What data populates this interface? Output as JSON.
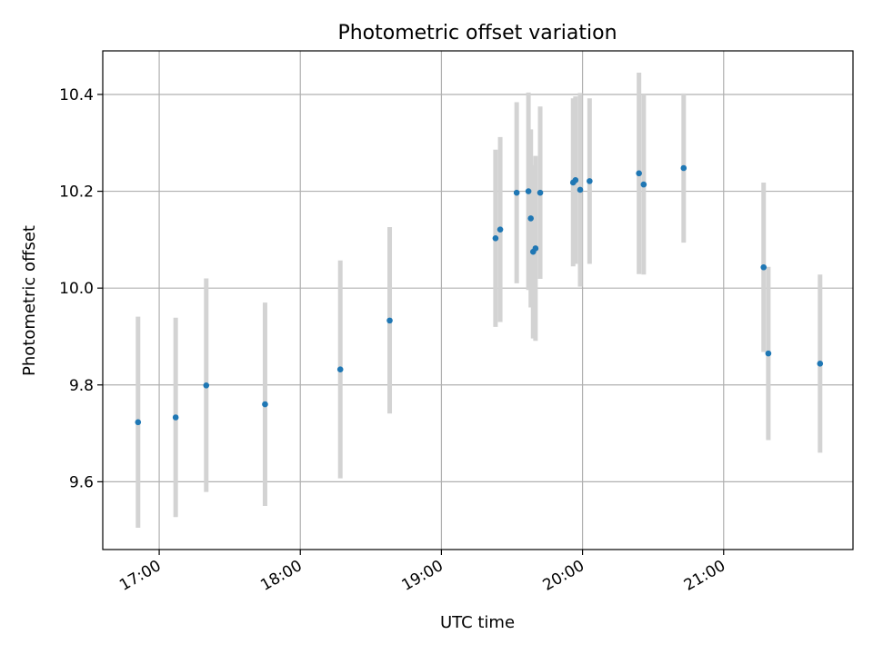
{
  "chart_data": {
    "type": "scatter",
    "title": "Photometric offset variation",
    "xlabel": "UTC time",
    "ylabel": "Photometric offset",
    "xlim": [
      "16:36",
      "21:55"
    ],
    "ylim": [
      9.46,
      10.49
    ],
    "grid": true,
    "x_ticks": [
      "17:00",
      "18:00",
      "19:00",
      "20:00",
      "21:00"
    ],
    "y_ticks": [
      "9.6",
      "9.8",
      "10.0",
      "10.2",
      "10.4"
    ],
    "colors": {
      "point": "#1f77b4",
      "errorbar": "#d3d3d3",
      "grid": "#b0b0b0"
    },
    "points": [
      {
        "x": "16:51",
        "y": 9.723,
        "err_low": 9.505,
        "err_high": 9.941
      },
      {
        "x": "17:07",
        "y": 9.733,
        "err_low": 9.527,
        "err_high": 9.939
      },
      {
        "x": "17:20",
        "y": 9.799,
        "err_low": 9.579,
        "err_high": 10.02
      },
      {
        "x": "17:45",
        "y": 9.76,
        "err_low": 9.55,
        "err_high": 9.97
      },
      {
        "x": "18:17",
        "y": 9.832,
        "err_low": 9.607,
        "err_high": 10.057
      },
      {
        "x": "18:38",
        "y": 9.933,
        "err_low": 9.741,
        "err_high": 10.126
      },
      {
        "x": "19:23",
        "y": 10.103,
        "err_low": 9.92,
        "err_high": 10.286
      },
      {
        "x": "19:25",
        "y": 10.121,
        "err_low": 9.93,
        "err_high": 10.312
      },
      {
        "x": "19:32",
        "y": 10.197,
        "err_low": 10.01,
        "err_high": 10.384
      },
      {
        "x": "19:37",
        "y": 10.2,
        "err_low": 9.996,
        "err_high": 10.404
      },
      {
        "x": "19:38",
        "y": 10.144,
        "err_low": 9.96,
        "err_high": 10.328
      },
      {
        "x": "19:39",
        "y": 10.075,
        "err_low": 9.896,
        "err_high": 10.254
      },
      {
        "x": "19:40",
        "y": 10.082,
        "err_low": 9.891,
        "err_high": 10.273
      },
      {
        "x": "19:42",
        "y": 10.197,
        "err_low": 10.019,
        "err_high": 10.375
      },
      {
        "x": "19:56",
        "y": 10.218,
        "err_low": 10.045,
        "err_high": 10.392
      },
      {
        "x": "19:57",
        "y": 10.223,
        "err_low": 10.05,
        "err_high": 10.396
      },
      {
        "x": "19:59",
        "y": 10.203,
        "err_low": 10.003,
        "err_high": 10.403
      },
      {
        "x": "20:03",
        "y": 10.221,
        "err_low": 10.05,
        "err_high": 10.392
      },
      {
        "x": "20:24",
        "y": 10.237,
        "err_low": 10.029,
        "err_high": 10.445
      },
      {
        "x": "20:26",
        "y": 10.214,
        "err_low": 10.028,
        "err_high": 10.4
      },
      {
        "x": "20:43",
        "y": 10.248,
        "err_low": 10.094,
        "err_high": 10.402
      },
      {
        "x": "21:17",
        "y": 10.043,
        "err_low": 9.868,
        "err_high": 10.218
      },
      {
        "x": "21:19",
        "y": 9.865,
        "err_low": 9.686,
        "err_high": 10.044
      },
      {
        "x": "21:41",
        "y": 9.844,
        "err_low": 9.66,
        "err_high": 10.028
      }
    ]
  }
}
